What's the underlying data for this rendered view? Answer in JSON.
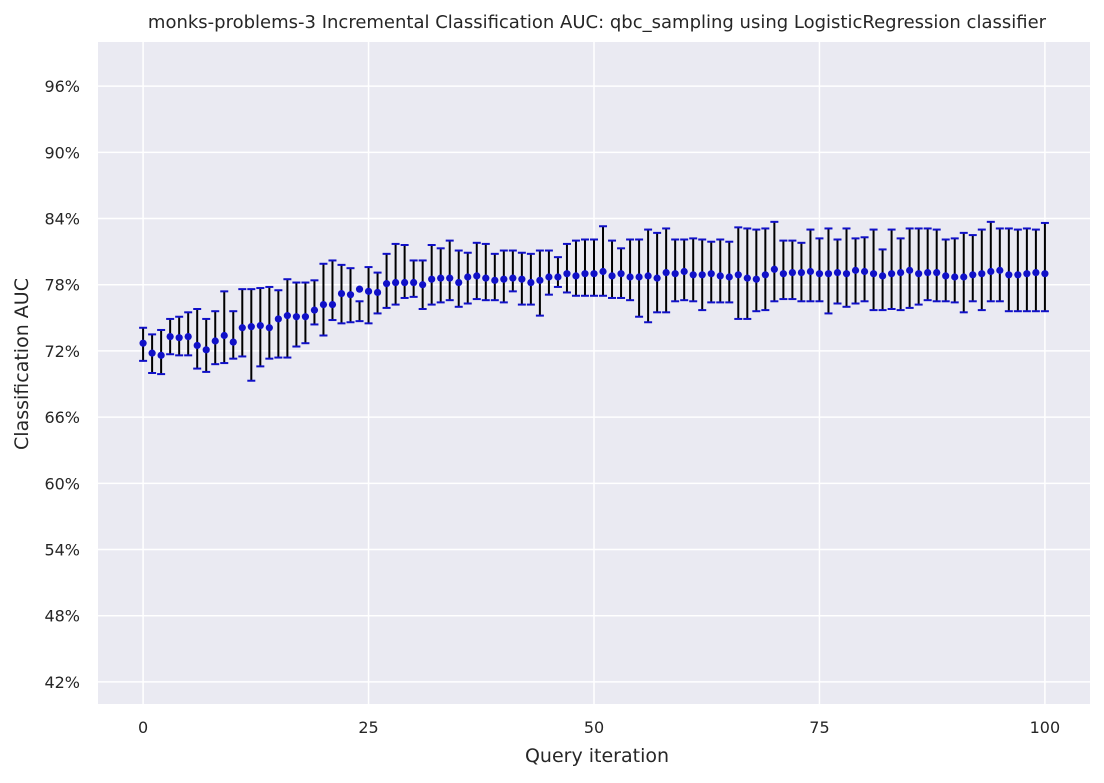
{
  "chart_data": {
    "type": "scatter",
    "title": "monks-problems-3 Incremental Classification AUC: qbc_sampling using LogisticRegression classifier",
    "xlabel": "Query iteration",
    "ylabel": "Classification AUC",
    "xlim": [
      -5,
      105
    ],
    "ylim": [
      40,
      100
    ],
    "x_ticks": [
      0,
      25,
      50,
      75,
      100
    ],
    "x_tick_labels": [
      "0",
      "25",
      "50",
      "75",
      "100"
    ],
    "y_ticks": [
      42,
      48,
      54,
      60,
      66,
      72,
      78,
      84,
      90,
      96
    ],
    "y_tick_labels": [
      "42%",
      "48%",
      "54%",
      "60%",
      "66%",
      "72%",
      "78%",
      "84%",
      "90%",
      "96%"
    ],
    "grid": true,
    "background": "#eaeaf2",
    "point_color": "#1010c8",
    "errorbar_color": "#000000",
    "cap_color": "#1010c8",
    "series": [
      {
        "x": [
          0,
          1,
          2,
          3,
          4,
          5,
          6,
          7,
          8,
          9,
          10,
          11,
          12,
          13,
          14,
          15,
          16,
          17,
          18,
          19,
          20,
          21,
          22,
          23,
          24,
          25,
          26,
          27,
          28,
          29,
          30,
          31,
          32,
          33,
          34,
          35,
          36,
          37,
          38,
          39,
          40,
          41,
          42,
          43,
          44,
          45,
          46,
          47,
          48,
          49,
          50,
          51,
          52,
          53,
          54,
          55,
          56,
          57,
          58,
          59,
          60,
          61,
          62,
          63,
          64,
          65,
          66,
          67,
          68,
          69,
          70,
          71,
          72,
          73,
          74,
          75,
          76,
          77,
          78,
          79,
          80,
          81,
          82,
          83,
          84,
          85,
          86,
          87,
          88,
          89,
          90,
          91,
          92,
          93,
          94,
          95,
          96,
          97,
          98,
          99,
          100
        ],
        "values": [
          72.7,
          71.8,
          71.6,
          73.3,
          73.2,
          73.3,
          72.5,
          72.1,
          72.9,
          73.4,
          72.8,
          74.1,
          74.2,
          74.3,
          74.1,
          74.9,
          75.2,
          75.1,
          75.1,
          75.7,
          76.2,
          76.2,
          77.2,
          77.1,
          77.6,
          77.4,
          77.3,
          78.1,
          78.2,
          78.2,
          78.2,
          78.0,
          78.5,
          78.6,
          78.6,
          78.2,
          78.7,
          78.8,
          78.6,
          78.4,
          78.5,
          78.6,
          78.5,
          78.2,
          78.4,
          78.7,
          78.7,
          79.0,
          78.8,
          79.0,
          79.0,
          79.2,
          78.8,
          79.0,
          78.7,
          78.7,
          78.8,
          78.6,
          79.1,
          79.0,
          79.2,
          78.9,
          78.9,
          79.0,
          78.8,
          78.7,
          78.9,
          78.6,
          78.5,
          78.9,
          79.4,
          79.0,
          79.1,
          79.1,
          79.2,
          79.0,
          79.0,
          79.1,
          79.0,
          79.3,
          79.2,
          79.0,
          78.8,
          79.0,
          79.1,
          79.3,
          79.0,
          79.1,
          79.1,
          78.8,
          78.7,
          78.7,
          78.9,
          79.0,
          79.2,
          79.3,
          78.9,
          78.9,
          79.0,
          79.1,
          79.0
        ],
        "lower": [
          71.1,
          70.0,
          69.9,
          71.7,
          71.6,
          71.6,
          70.4,
          70.1,
          70.8,
          70.9,
          71.3,
          71.5,
          69.3,
          70.6,
          71.3,
          71.4,
          71.4,
          72.4,
          72.7,
          74.4,
          73.4,
          74.8,
          74.5,
          74.6,
          74.7,
          74.5,
          75.4,
          75.9,
          76.2,
          76.8,
          76.9,
          75.8,
          76.2,
          76.4,
          76.6,
          76.0,
          76.3,
          76.7,
          76.6,
          76.6,
          76.4,
          77.4,
          76.2,
          76.2,
          75.2,
          77.1,
          77.8,
          77.3,
          77.0,
          77.0,
          77.0,
          77.0,
          76.8,
          76.8,
          76.6,
          75.1,
          74.6,
          75.5,
          75.5,
          76.5,
          76.6,
          76.5,
          75.7,
          76.4,
          76.4,
          76.4,
          74.9,
          74.9,
          75.6,
          75.7,
          76.5,
          76.7,
          76.7,
          76.5,
          76.5,
          76.5,
          75.4,
          76.3,
          76.0,
          76.3,
          76.5,
          75.7,
          75.7,
          75.8,
          75.7,
          75.9,
          76.2,
          76.6,
          76.5,
          76.5,
          76.4,
          75.5,
          76.5,
          75.7,
          76.5,
          76.5,
          75.6,
          75.6,
          75.6,
          75.6,
          75.6
        ],
        "upper": [
          74.1,
          73.5,
          73.9,
          74.9,
          75.1,
          75.5,
          75.8,
          74.9,
          75.6,
          77.4,
          75.6,
          77.6,
          77.6,
          77.7,
          77.8,
          77.5,
          78.5,
          78.2,
          78.2,
          78.4,
          79.9,
          80.2,
          79.8,
          79.5,
          76.5,
          79.6,
          79.1,
          80.8,
          81.7,
          81.6,
          80.2,
          80.2,
          81.6,
          81.3,
          82.0,
          81.1,
          80.9,
          81.8,
          81.7,
          80.8,
          81.1,
          81.1,
          80.9,
          80.8,
          81.1,
          81.1,
          80.5,
          81.7,
          82.0,
          82.1,
          82.1,
          83.3,
          82.0,
          81.3,
          82.1,
          82.1,
          83.0,
          82.7,
          83.1,
          82.1,
          82.1,
          82.2,
          82.1,
          81.9,
          82.1,
          81.9,
          83.2,
          83.1,
          83.0,
          83.1,
          83.7,
          82.0,
          82.0,
          81.8,
          83.0,
          82.2,
          83.1,
          82.1,
          83.1,
          82.2,
          82.3,
          83.0,
          81.2,
          83.0,
          82.2,
          83.1,
          83.1,
          83.1,
          83.0,
          82.1,
          82.2,
          82.7,
          82.5,
          83.0,
          83.7,
          83.1,
          83.1,
          83.0,
          83.1,
          83.0,
          83.6
        ]
      }
    ]
  }
}
